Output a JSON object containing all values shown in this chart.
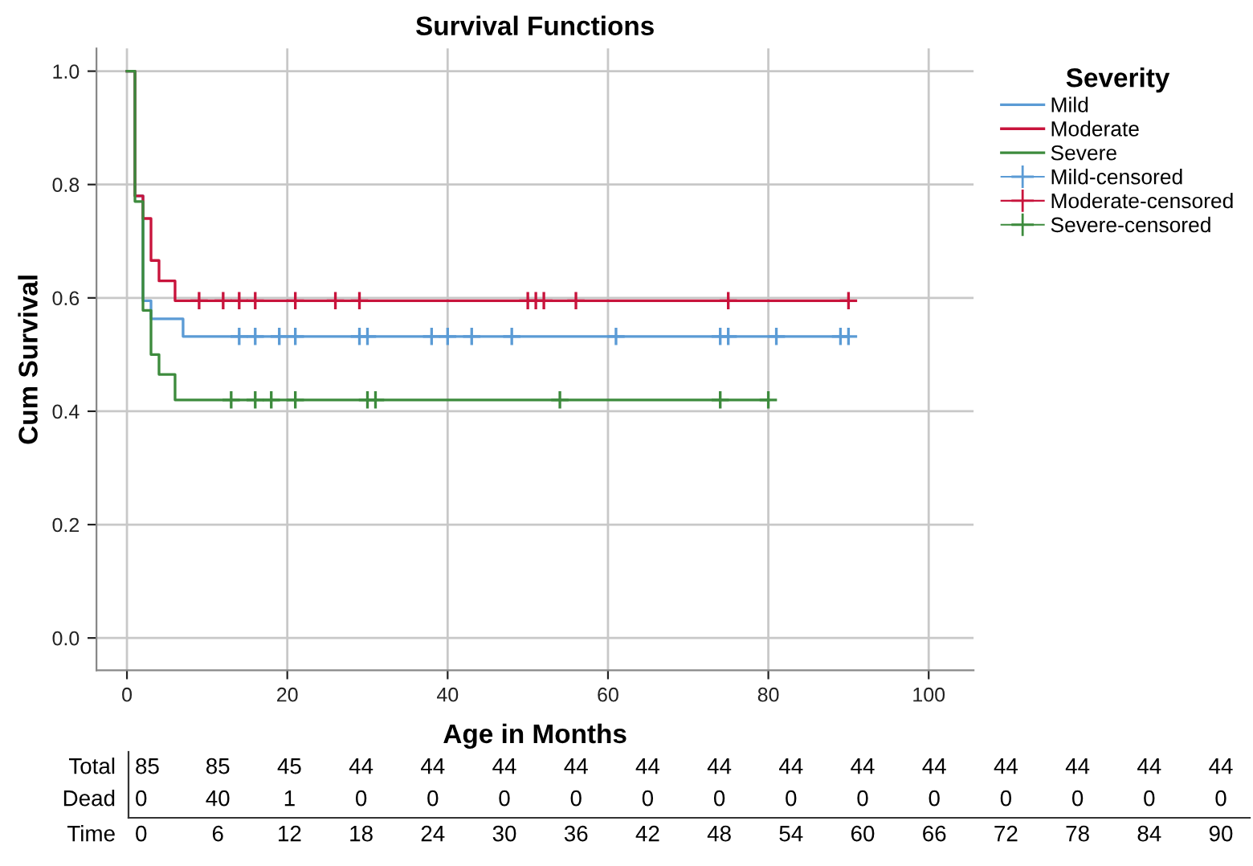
{
  "chart_data": {
    "type": "step",
    "title": "Survival Functions",
    "xlabel": "Age in Months",
    "ylabel": "Cum Survival",
    "legend_title": "Severity",
    "xlim": [
      -3.8,
      105.6
    ],
    "xticks": [
      0,
      20,
      40,
      60,
      80,
      100
    ],
    "ylim": [
      -0.057,
      1.04
    ],
    "yticks": [
      {
        "value": 0,
        "label": "0.0"
      },
      {
        "value": 0.2,
        "label": "0.2"
      },
      {
        "value": 0.4,
        "label": "0.4"
      },
      {
        "value": 0.6,
        "label": "0.6"
      },
      {
        "value": 0.8,
        "label": "0.8"
      },
      {
        "value": 1,
        "label": "1.0"
      }
    ],
    "grid": true,
    "legend": "top right",
    "series": [
      {
        "name": "Mild",
        "color": "#5b9bd5",
        "marker": "none",
        "x": [
          0,
          1,
          2,
          3,
          7,
          90
        ],
        "values": [
          1.0,
          0.78,
          0.595,
          0.563,
          0.532,
          0.532
        ]
      },
      {
        "name": "Moderate",
        "color": "#c8143c",
        "marker": "none",
        "x": [
          0,
          1,
          2,
          3,
          4,
          6,
          90
        ],
        "values": [
          1.0,
          0.78,
          0.74,
          0.666,
          0.63,
          0.595,
          0.595
        ]
      },
      {
        "name": "Severe",
        "color": "#3d8b3d",
        "marker": "none",
        "x": [
          0,
          1,
          2,
          3,
          4,
          6,
          80
        ],
        "values": [
          1.0,
          0.77,
          0.578,
          0.5,
          0.465,
          0.42,
          0.42
        ]
      },
      {
        "name": "Mild-censored",
        "type": "scatter",
        "color": "#5b9bd5",
        "marker": "cross",
        "x": [
          14,
          16,
          19,
          21,
          29,
          30,
          38,
          40,
          43,
          48,
          61,
          74,
          75,
          81,
          89,
          90
        ],
        "values": [
          0.532,
          0.532,
          0.532,
          0.532,
          0.532,
          0.532,
          0.532,
          0.532,
          0.532,
          0.532,
          0.532,
          0.532,
          0.532,
          0.532,
          0.532,
          0.532
        ]
      },
      {
        "name": "Moderate-censored",
        "type": "scatter",
        "color": "#c8143c",
        "marker": "cross",
        "x": [
          9,
          12,
          14,
          16,
          21,
          26,
          29,
          50,
          51,
          52,
          56,
          75,
          90
        ],
        "values": [
          0.595,
          0.595,
          0.595,
          0.595,
          0.595,
          0.595,
          0.595,
          0.595,
          0.595,
          0.595,
          0.595,
          0.595,
          0.595
        ]
      },
      {
        "name": "Severe-censored",
        "type": "scatter",
        "color": "#3d8b3d",
        "marker": "cross",
        "x": [
          13,
          16,
          18,
          21,
          30,
          31,
          54,
          74,
          80
        ],
        "values": [
          0.42,
          0.42,
          0.42,
          0.42,
          0.42,
          0.42,
          0.42,
          0.42,
          0.42
        ]
      }
    ],
    "annotations": [
      "Total",
      "85",
      "85",
      "45",
      "44",
      "44",
      "44",
      "44",
      "44",
      "44",
      "44",
      "44",
      "44",
      "44",
      "44",
      "44",
      "44",
      "Dead",
      "0",
      "40",
      "1",
      "0",
      "0",
      "0",
      "0",
      "0",
      "0",
      "0",
      "0",
      "0",
      "0",
      "0",
      "0",
      "0",
      "Time",
      "0",
      "6",
      "12",
      "18",
      "24",
      "30",
      "36",
      "42",
      "48",
      "54",
      "60",
      "66",
      "72",
      "78",
      "84",
      "90"
    ]
  }
}
